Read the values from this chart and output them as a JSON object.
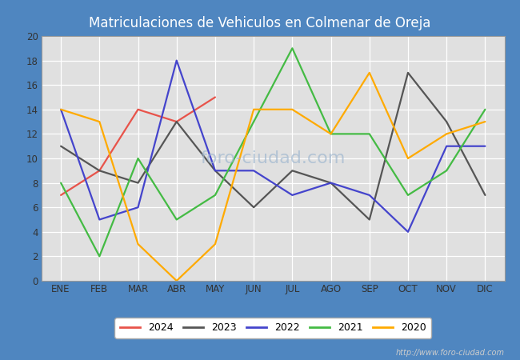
{
  "title": "Matriculaciones de Vehiculos en Colmenar de Oreja",
  "months": [
    "ENE",
    "FEB",
    "MAR",
    "ABR",
    "MAY",
    "JUN",
    "JUL",
    "AGO",
    "SEP",
    "OCT",
    "NOV",
    "DIC"
  ],
  "ylim": [
    0,
    20
  ],
  "yticks": [
    0,
    2,
    4,
    6,
    8,
    10,
    12,
    14,
    16,
    18,
    20
  ],
  "series": {
    "2024": {
      "values": [
        7,
        9,
        14,
        13,
        15,
        null,
        null,
        null,
        null,
        null,
        null,
        null
      ],
      "color": "#e8534a"
    },
    "2023": {
      "values": [
        11,
        9,
        8,
        13,
        9,
        6,
        9,
        8,
        5,
        17,
        13,
        7
      ],
      "color": "#555555"
    },
    "2022": {
      "values": [
        14,
        5,
        6,
        18,
        9,
        9,
        7,
        8,
        7,
        4,
        11,
        11
      ],
      "color": "#4444cc"
    },
    "2021": {
      "values": [
        8,
        2,
        10,
        5,
        7,
        13,
        19,
        12,
        12,
        7,
        9,
        14
      ],
      "color": "#44bb44"
    },
    "2020": {
      "values": [
        14,
        13,
        3,
        0,
        3,
        14,
        14,
        12,
        17,
        10,
        12,
        13
      ],
      "color": "#ffaa00"
    }
  },
  "legend_order": [
    "2024",
    "2023",
    "2022",
    "2021",
    "2020"
  ],
  "header_bgcolor": "#4f86c0",
  "plot_bgcolor": "#e0e0e0",
  "outer_bgcolor": "#4f86c0",
  "title_color": "white",
  "title_fontsize": 12,
  "tick_fontsize": 8.5,
  "legend_fontsize": 9,
  "linewidth": 1.6,
  "watermark_text": "foro-ciudad.com",
  "watermark_color": "#a0b8d0",
  "url_text": "http://www.foro-ciudad.com"
}
